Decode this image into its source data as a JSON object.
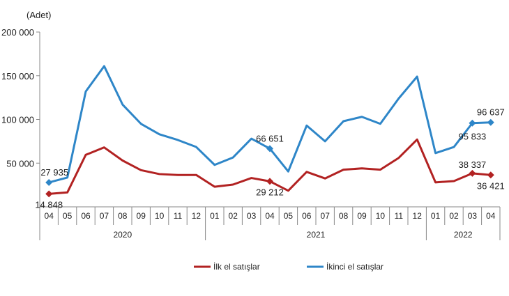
{
  "chart_data": {
    "type": "line",
    "unit_label": "(Adet)",
    "ylim": [
      0,
      200000
    ],
    "yticks": [
      "200 000",
      "150 000",
      "100 000",
      "50 000"
    ],
    "ytick_values": [
      200000,
      150000,
      100000,
      50000
    ],
    "grid": false,
    "legend_position": "bottom",
    "categories": [
      "04",
      "05",
      "06",
      "07",
      "08",
      "09",
      "10",
      "11",
      "12",
      "01",
      "02",
      "03",
      "04",
      "05",
      "06",
      "07",
      "08",
      "09",
      "10",
      "11",
      "12",
      "01",
      "02",
      "03",
      "04"
    ],
    "years": [
      {
        "label": "2020",
        "start": 0,
        "end": 8
      },
      {
        "label": "2021",
        "start": 9,
        "end": 20
      },
      {
        "label": "2022",
        "start": 21,
        "end": 24
      }
    ],
    "series": [
      {
        "name": "İlk el satışlar",
        "color": "#b22222",
        "values": [
          14848,
          16500,
          59500,
          68000,
          53000,
          42000,
          37500,
          36500,
          36500,
          23000,
          25500,
          33000,
          29212,
          18500,
          40000,
          32500,
          42500,
          44000,
          42500,
          56000,
          77000,
          28000,
          29500,
          38337,
          36421
        ],
        "labels": [
          {
            "index": 0,
            "text": "14 848"
          },
          {
            "index": 12,
            "text": "29 212"
          },
          {
            "index": 23,
            "text": "38 337"
          },
          {
            "index": 24,
            "text": "36 421"
          }
        ]
      },
      {
        "name": "İkinci el satışlar",
        "color": "#2e86c8",
        "values": [
          27935,
          33500,
          132000,
          161000,
          117000,
          95000,
          83000,
          76500,
          68500,
          48000,
          56500,
          78000,
          66651,
          40500,
          93000,
          75000,
          98000,
          103000,
          95000,
          124000,
          149000,
          61500,
          68500,
          95833,
          96637
        ],
        "labels": [
          {
            "index": 0,
            "text": "27 935"
          },
          {
            "index": 12,
            "text": "66 651"
          },
          {
            "index": 23,
            "text": "95 833"
          },
          {
            "index": 24,
            "text": "96 637"
          }
        ]
      }
    ]
  }
}
